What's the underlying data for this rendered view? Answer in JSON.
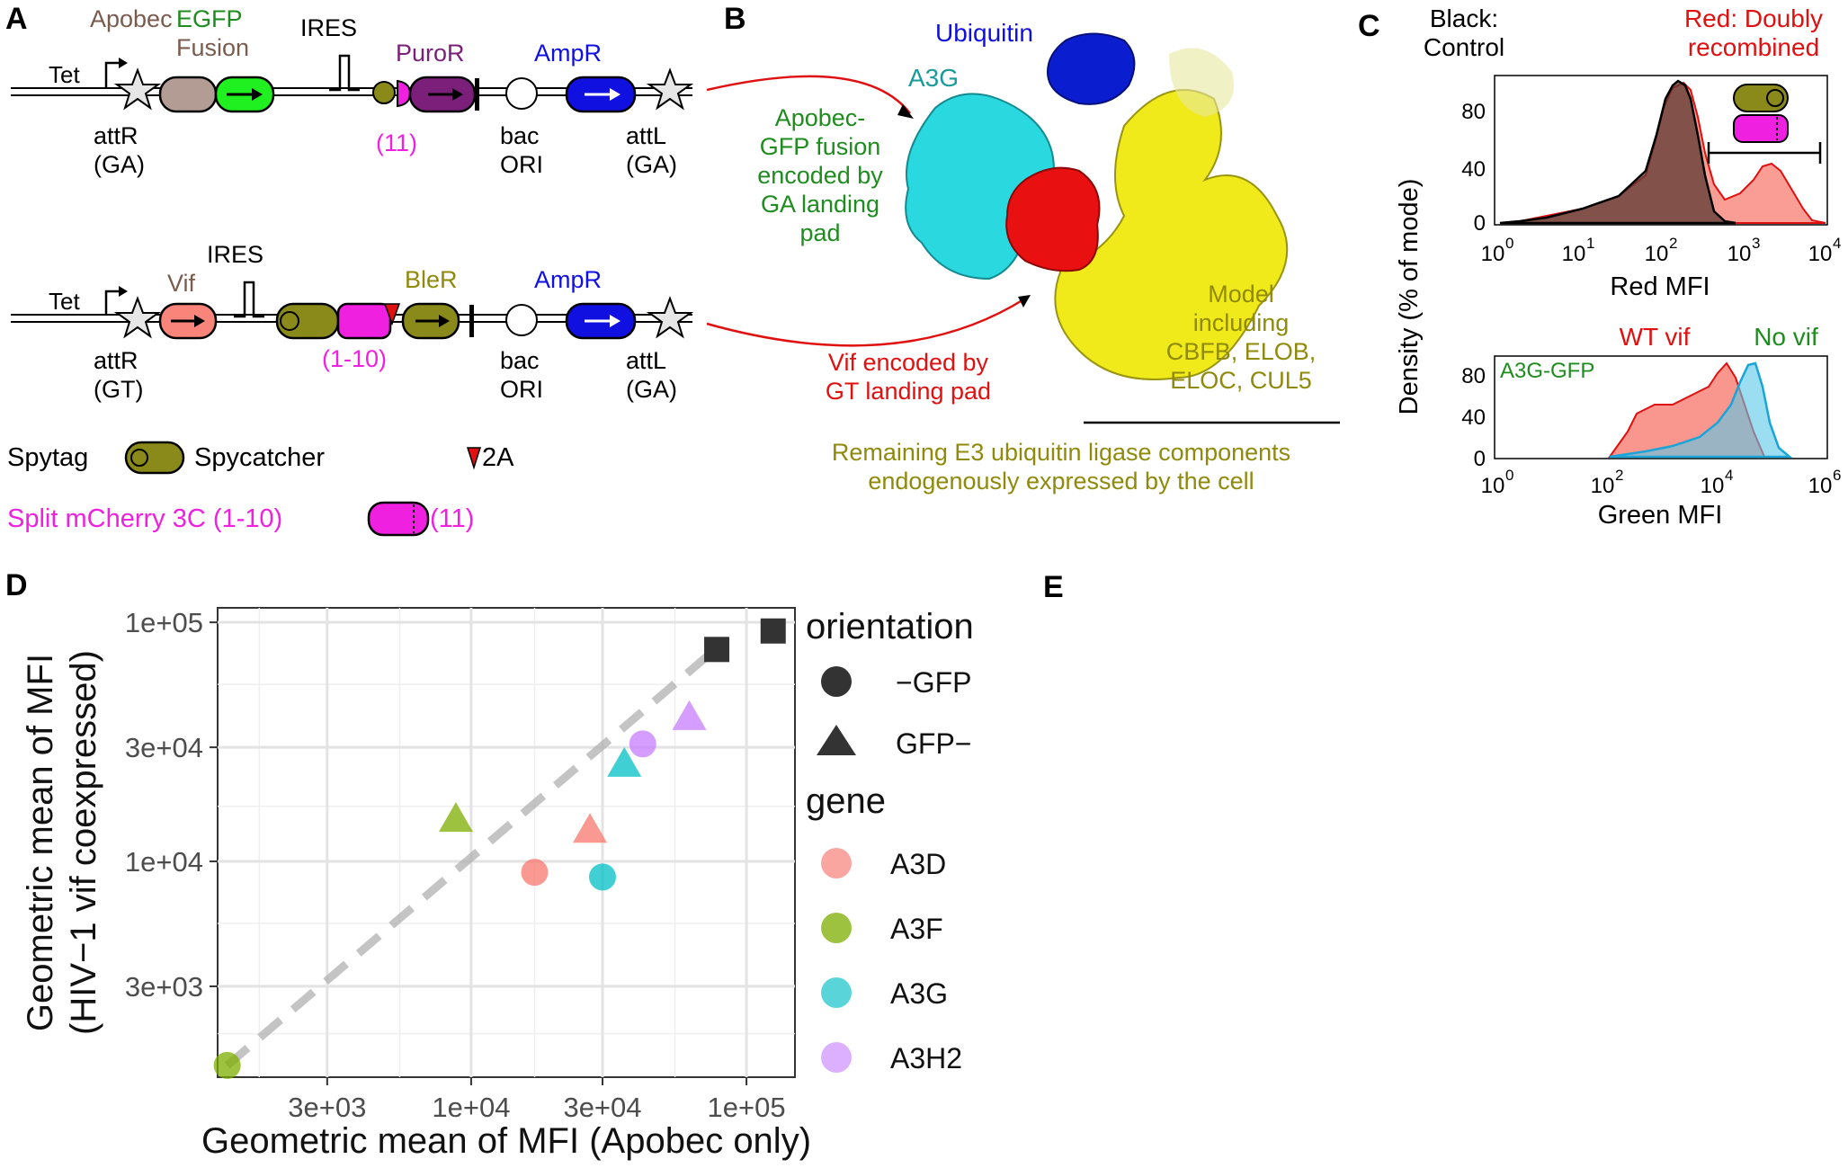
{
  "panel_letters": [
    "A",
    "B",
    "C",
    "D",
    "E"
  ],
  "colors": {
    "black": "#000000",
    "green": "#1e8c1e",
    "brown": "#7a5c4f",
    "purple": "#7b1f7b",
    "blue": "#1010e0",
    "magenta": "#f020e0",
    "olive": "#8f8a0c",
    "red": "#e01010",
    "teal": "#1a9a9a",
    "a3d": "#f8766d",
    "a3f": "#7cae00",
    "a3g": "#00bfc4",
    "a3h2": "#c77cff",
    "dark": "#333333",
    "grid": "#e3e3e3"
  },
  "panelA": {
    "top": {
      "tet": "Tet",
      "apobec_label_part1": "Apobec",
      "apobec_label_part2": "EGFP",
      "fusion": "Fusion",
      "ires": "IRES",
      "puror": "PuroR",
      "ampr": "AmpR",
      "split_label": "(11)",
      "attr1": "attR",
      "attr2": "(GA)",
      "bac1": "bac",
      "bac2": "ORI",
      "attl1": "attL",
      "attl2": "(GA)"
    },
    "bottom": {
      "tet": "Tet",
      "vif": "Vif",
      "ires": "IRES",
      "bler": "BleR",
      "ampr": "AmpR",
      "split_label": "(1-10)",
      "attr1": "attR",
      "attr2": "(GT)",
      "bac1": "bac",
      "bac2": "ORI",
      "attl1": "attL",
      "attl2": "(GA)"
    },
    "legend": {
      "spytag": "Spytag",
      "spycatcher": "Spycatcher",
      "twoa": "2A",
      "split_left": "Split mCherry 3C (1-10)",
      "split_right": "(11)"
    }
  },
  "panelB": {
    "ubiquitin": "Ubiquitin",
    "a3g": "A3G",
    "apobec_note": [
      "Apobec-",
      "GFP fusion",
      "encoded by",
      "GA landing",
      "pad"
    ],
    "model_note": [
      "Model",
      "including",
      "CBFB, ELOB,",
      "ELOC, CUL5"
    ],
    "vif_note": [
      "Vif encoded by",
      "GT landing pad"
    ],
    "remaining": [
      "Remaining E3 ubiquitin ligase components",
      "endogenously expressed by the cell"
    ]
  },
  "panelC": {
    "top_header_left": [
      "Black:",
      "Control"
    ],
    "top_header_right": [
      "Red: Doubly",
      "recombined"
    ],
    "ylabel": "Density (% of mode)",
    "top_xlabel": "Red MFI",
    "bottom_xlabel": "Green MFI",
    "bottom_legend_wt": "WT vif",
    "bottom_legend_no": "No vif",
    "bottom_inset": "A3G-GFP",
    "top_yticks": [
      "0",
      "40",
      "80"
    ],
    "bottom_yticks": [
      "0",
      "40",
      "80"
    ],
    "top_xticks": [
      "10",
      "10",
      "10",
      "10",
      "10"
    ],
    "top_xexps": [
      "0",
      "1",
      "2",
      "3",
      "4"
    ],
    "bottom_xticks": [
      "10",
      "10",
      "10",
      "10"
    ],
    "bottom_xexps": [
      "0",
      "2",
      "4",
      "6"
    ]
  },
  "chart_data": {
    "type": "scatter",
    "xlabel": "Geometric mean of MFI (Apobec only)",
    "ylabel": [
      "Geometric mean of MFI",
      "(HIV−1 vif coexpressed)"
    ],
    "log_scale": true,
    "x_ticks": [
      "3e+03",
      "1e+04",
      "3e+04",
      "1e+05"
    ],
    "x_tick_values": [
      3000,
      10000,
      30000,
      100000
    ],
    "y_ticks": [
      "3e+03",
      "1e+04",
      "3e+04",
      "1e+05"
    ],
    "y_tick_values": [
      3000,
      10000,
      30000,
      100000
    ],
    "xlim": [
      1200,
      150000
    ],
    "ylim": [
      1250,
      115000
    ],
    "grid": true,
    "legend_orientation_title": "orientation",
    "legend_orientation": [
      {
        "shape": "circle",
        "label": "−GFP"
      },
      {
        "shape": "triangle",
        "label": "GFP−"
      }
    ],
    "legend_gene_title": "gene",
    "legend_gene": [
      {
        "label": "A3D",
        "color": "#f8766d"
      },
      {
        "label": "A3F",
        "color": "#7cae00"
      },
      {
        "label": "A3G",
        "color": "#00bfc4"
      },
      {
        "label": "A3H2",
        "color": "#c77cff"
      }
    ],
    "points": [
      {
        "x": 1300,
        "y": 1400,
        "shape": "circle",
        "color": "#7cae00"
      },
      {
        "x": 8800,
        "y": 15000,
        "shape": "triangle",
        "color": "#7cae00"
      },
      {
        "x": 17000,
        "y": 9000,
        "shape": "circle",
        "color": "#f8766d"
      },
      {
        "x": 27000,
        "y": 13500,
        "shape": "triangle",
        "color": "#f8766d"
      },
      {
        "x": 30000,
        "y": 8600,
        "shape": "circle",
        "color": "#00bfc4"
      },
      {
        "x": 36000,
        "y": 25500,
        "shape": "triangle",
        "color": "#00bfc4"
      },
      {
        "x": 42000,
        "y": 31000,
        "shape": "circle",
        "color": "#c77cff"
      },
      {
        "x": 62000,
        "y": 40000,
        "shape": "triangle",
        "color": "#c77cff"
      },
      {
        "x": 78000,
        "y": 77000,
        "shape": "square",
        "color": "#333333"
      },
      {
        "x": 125000,
        "y": 92000,
        "shape": "square",
        "color": "#333333"
      }
    ],
    "diagonal": [
      [
        1300,
        1400
      ],
      [
        80000,
        80000
      ]
    ]
  }
}
